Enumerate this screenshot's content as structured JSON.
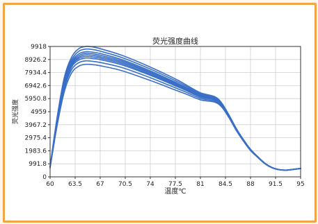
{
  "colors": {
    "frame_border": "#f2a546",
    "series": "#3a6fc6",
    "grid": "#d0d0d0",
    "axis": "#333333"
  },
  "chart_data": {
    "type": "line",
    "title": "荧光强度曲线",
    "xlabel": "温度℃",
    "ylabel": "荧光强度",
    "xlim": [
      60,
      95
    ],
    "ylim": [
      0,
      9918
    ],
    "x_ticks": [
      "60",
      "63.5",
      "67",
      "70.5",
      "74",
      "77.5",
      "81",
      "84.5",
      "88",
      "91.5",
      "95"
    ],
    "y_ticks": [
      "0",
      "991.8",
      "1983.6",
      "2975.4",
      "3967.2",
      "4959",
      "5950.8",
      "6942.6",
      "7934.4",
      "8926.2",
      "9918"
    ],
    "grid": true,
    "legend": "none",
    "x": [
      60,
      61,
      62,
      63,
      64,
      65,
      66,
      67,
      70,
      74,
      77.5,
      79,
      81,
      83,
      84,
      85,
      86,
      87,
      88,
      89,
      90,
      91,
      92,
      93,
      94,
      95
    ],
    "series": [
      {
        "values": [
          800,
          4600,
          7600,
          9100,
          9750,
          9920,
          9880,
          9750,
          9250,
          8350,
          7450,
          7000,
          6400,
          6100,
          5600,
          4700,
          3700,
          2850,
          2100,
          1550,
          1050,
          720,
          560,
          520,
          580,
          650
        ]
      },
      {
        "values": [
          780,
          4500,
          7450,
          8900,
          9550,
          9720,
          9680,
          9560,
          9080,
          8200,
          7320,
          6900,
          6320,
          6030,
          5550,
          4650,
          3660,
          2820,
          2080,
          1530,
          1040,
          710,
          555,
          515,
          575,
          645
        ]
      },
      {
        "values": [
          760,
          4400,
          7300,
          8750,
          9350,
          9520,
          9480,
          9380,
          8920,
          8060,
          7200,
          6800,
          6250,
          5980,
          5500,
          4620,
          3630,
          2800,
          2060,
          1520,
          1030,
          705,
          550,
          512,
          570,
          640
        ]
      },
      {
        "values": [
          750,
          4350,
          7200,
          8650,
          9220,
          9400,
          9360,
          9250,
          8820,
          7970,
          7130,
          6740,
          6200,
          5940,
          5470,
          4600,
          3610,
          2790,
          2050,
          1510,
          1025,
          700,
          548,
          510,
          568,
          638
        ]
      },
      {
        "values": [
          740,
          4300,
          7100,
          8550,
          9100,
          9280,
          9240,
          9140,
          8720,
          7890,
          7060,
          6690,
          6160,
          5900,
          5440,
          4580,
          3600,
          2780,
          2040,
          1505,
          1020,
          698,
          545,
          508,
          566,
          636
        ]
      },
      {
        "values": [
          730,
          4250,
          7000,
          8450,
          9000,
          9160,
          9120,
          9030,
          8620,
          7800,
          6990,
          6630,
          6110,
          5870,
          5420,
          4560,
          3590,
          2770,
          2030,
          1500,
          1015,
          695,
          543,
          506,
          564,
          634
        ]
      },
      {
        "values": [
          720,
          4200,
          6900,
          8350,
          8880,
          9040,
          9000,
          8920,
          8520,
          7720,
          6920,
          6570,
          6070,
          5840,
          5400,
          4550,
          3580,
          2760,
          2020,
          1495,
          1010,
          692,
          541,
          504,
          562,
          632
        ]
      },
      {
        "values": [
          700,
          4100,
          6750,
          8150,
          8680,
          8820,
          8780,
          8700,
          8320,
          7540,
          6770,
          6440,
          5970,
          5760,
          5350,
          4520,
          3560,
          2740,
          2010,
          1490,
          1005,
          690,
          540,
          503,
          560,
          630
        ]
      },
      {
        "values": [
          680,
          3950,
          6500,
          7900,
          8420,
          8560,
          8530,
          8450,
          8080,
          7330,
          6600,
          6300,
          5860,
          5680,
          5300,
          4490,
          3540,
          2720,
          2000,
          1485,
          1000,
          688,
          538,
          502,
          558,
          628
        ]
      }
    ]
  }
}
